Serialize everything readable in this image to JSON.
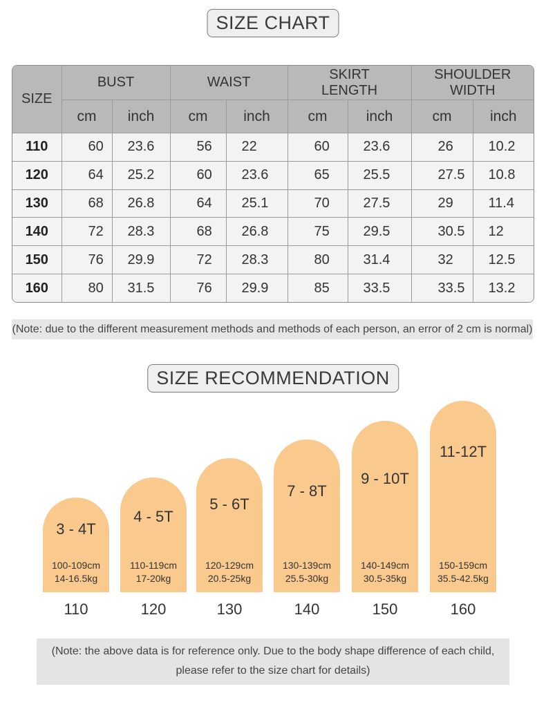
{
  "size_chart": {
    "title": "SIZE CHART",
    "size_header": "SIZE",
    "groups": [
      {
        "label": "BUST",
        "units": [
          "cm",
          "inch"
        ]
      },
      {
        "label": "WAIST",
        "units": [
          "cm",
          "inch"
        ]
      },
      {
        "label": "SKIRT LENGTH",
        "units": [
          "cm",
          "inch"
        ]
      },
      {
        "label": "SHOULDER WIDTH",
        "units": [
          "cm",
          "inch"
        ]
      }
    ],
    "rows": [
      [
        "110",
        "60",
        "23.6",
        "56",
        "22",
        "60",
        "23.6",
        "26",
        "10.2"
      ],
      [
        "120",
        "64",
        "25.2",
        "60",
        "23.6",
        "65",
        "25.5",
        "27.5",
        "10.8"
      ],
      [
        "130",
        "68",
        "26.8",
        "64",
        "25.1",
        "70",
        "27.5",
        "29",
        "11.4"
      ],
      [
        "140",
        "72",
        "28.3",
        "68",
        "26.8",
        "75",
        "29.5",
        "30.5",
        "12"
      ],
      [
        "150",
        "76",
        "29.9",
        "72",
        "28.3",
        "80",
        "31.4",
        "32",
        "12.5"
      ],
      [
        "160",
        "80",
        "31.5",
        "76",
        "29.9",
        "85",
        "33.5",
        "33.5",
        "13.2"
      ]
    ],
    "note": "(Note: due to the different measurement methods and methods of each person, an error of 2 cm is normal)"
  },
  "size_recommendation": {
    "title": "SIZE RECOMMENDATION",
    "items": [
      {
        "age": "3 - 4T",
        "height": "100-109cm",
        "weight": "14-16.5kg",
        "size": "110"
      },
      {
        "age": "4 - 5T",
        "height": "110-119cm",
        "weight": "17-20kg",
        "size": "120"
      },
      {
        "age": "5 - 6T",
        "height": "120-129cm",
        "weight": "20.5-25kg",
        "size": "130"
      },
      {
        "age": "7 - 8T",
        "height": "130-139cm",
        "weight": "25.5-30kg",
        "size": "140"
      },
      {
        "age": "9 - 10T",
        "height": "140-149cm",
        "weight": "30.5-35kg",
        "size": "150"
      },
      {
        "age": "11-12T",
        "height": "150-159cm",
        "weight": "35.5-42.5kg",
        "size": "160"
      }
    ],
    "note_line1": "(Note: the above data is for reference only. Due to the body shape difference of each child,",
    "note_line2": "please refer to the size chart for details)",
    "colors": {
      "arch_fill": "#f9c98e"
    }
  }
}
